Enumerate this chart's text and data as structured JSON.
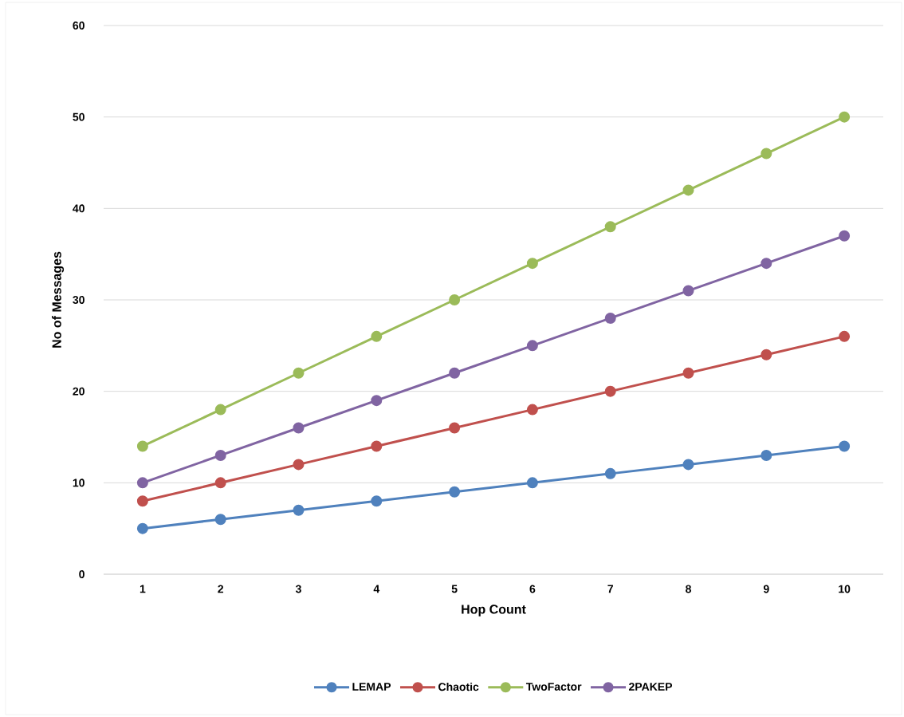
{
  "chart_data": {
    "type": "line",
    "xlabel": "Hop Count",
    "ylabel": "No of Messages",
    "categories": [
      "1",
      "2",
      "3",
      "4",
      "5",
      "6",
      "7",
      "8",
      "9",
      "10"
    ],
    "series": [
      {
        "name": "LEMAP",
        "color": "#4f81bd",
        "values": [
          5,
          6,
          7,
          8,
          9,
          10,
          11,
          12,
          13,
          14
        ]
      },
      {
        "name": "Chaotic",
        "color": "#c0504d",
        "values": [
          8,
          10,
          12,
          14,
          16,
          18,
          20,
          22,
          24,
          26
        ]
      },
      {
        "name": "TwoFactor",
        "color": "#9bbb59",
        "values": [
          14,
          18,
          22,
          26,
          30,
          34,
          38,
          42,
          46,
          50
        ]
      },
      {
        "name": "2PAKEP",
        "color": "#8064a2",
        "values": [
          10,
          13,
          16,
          19,
          22,
          25,
          28,
          31,
          34,
          37
        ]
      }
    ],
    "ylim": [
      0,
      60
    ],
    "yticks": [
      0,
      10,
      20,
      30,
      40,
      50,
      60
    ],
    "grid": "y",
    "legend": "bottom",
    "marker": "circle",
    "line_style": "solid"
  }
}
